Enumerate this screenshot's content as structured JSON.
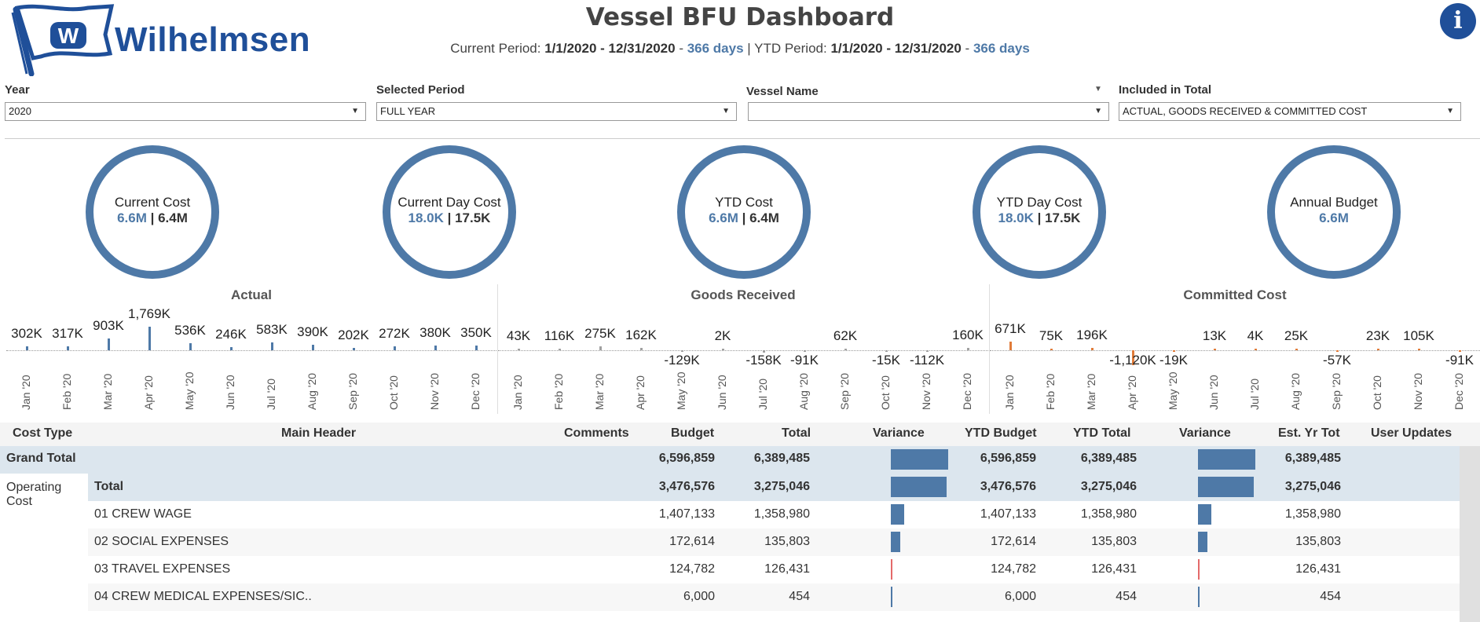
{
  "brand": {
    "name": "Wilhelmsen",
    "flag_letter": "W"
  },
  "header": {
    "title": "Vessel BFU Dashboard",
    "current_period_label": "Current Period:",
    "current_period_range": "1/1/2020 - 12/31/2020",
    "current_period_days": "366 days",
    "separator": "|",
    "ytd_period_label": "YTD Period:",
    "ytd_period_range": "1/1/2020 - 12/31/2020",
    "ytd_period_days": "366 days",
    "info_icon": "i"
  },
  "filters": [
    {
      "label": "Year",
      "value": "2020"
    },
    {
      "label": "Selected Period",
      "value": "FULL YEAR"
    },
    {
      "label": "Vessel Name",
      "value": ""
    },
    {
      "label": "Included in Total",
      "value": "ACTUAL, GOODS RECEIVED & COMMITTED COST"
    }
  ],
  "kpis": [
    {
      "label": "Current Cost",
      "highlight": "6.6M",
      "rest": " | 6.4M"
    },
    {
      "label": "Current Day Cost",
      "highlight": "18.0K",
      "rest": " | 17.5K"
    },
    {
      "label": "YTD Cost",
      "highlight": "6.6M",
      "rest": " | 6.4M"
    },
    {
      "label": "YTD Day Cost",
      "highlight": "18.0K",
      "rest": " | 17.5K"
    },
    {
      "label": "Annual Budget",
      "highlight": "6.6M",
      "rest": ""
    }
  ],
  "chart_data": [
    {
      "type": "bar",
      "title": "Actual",
      "color": "#4e79a7",
      "categories": [
        "Jan '20",
        "Feb '20",
        "Mar '20",
        "Apr '20",
        "May '20",
        "Jun '20",
        "Jul '20",
        "Aug '20",
        "Sep '20",
        "Oct '20",
        "Nov '20",
        "Dec '20"
      ],
      "values": [
        302000,
        317000,
        903000,
        1769000,
        536000,
        246000,
        583000,
        390000,
        202000,
        272000,
        380000,
        350000
      ],
      "labels": [
        "302K",
        "317K",
        "903K",
        "1,769K",
        "536K",
        "246K",
        "583K",
        "390K",
        "202K",
        "272K",
        "380K",
        "350K"
      ]
    },
    {
      "type": "bar",
      "title": "Goods Received",
      "color": "#a0a0a0",
      "categories": [
        "Jan '20",
        "Feb '20",
        "Mar '20",
        "Apr '20",
        "May '20",
        "Jun '20",
        "Jul '20",
        "Aug '20",
        "Sep '20",
        "Oct '20",
        "Nov '20",
        "Dec '20"
      ],
      "values": [
        43000,
        116000,
        275000,
        162000,
        -129000,
        2000,
        -158000,
        -91000,
        62000,
        -15000,
        -112000,
        160000
      ],
      "labels": [
        "43K",
        "116K",
        "275K",
        "162K",
        "-129K",
        "2K",
        "-158K",
        "-91K",
        "62K",
        "-15K",
        "-112K",
        "160K"
      ]
    },
    {
      "type": "bar",
      "title": "Committed Cost",
      "color": "#e07b39",
      "categories": [
        "Jan '20",
        "Feb '20",
        "Mar '20",
        "Apr '20",
        "May '20",
        "Jun '20",
        "Jul '20",
        "Aug '20",
        "Sep '20",
        "Oct '20",
        "Nov '20",
        "Dec '20"
      ],
      "values": [
        671000,
        75000,
        196000,
        -1120000,
        -19000,
        13000,
        4000,
        25000,
        -57000,
        23000,
        105000,
        -91000
      ],
      "labels": [
        "671K",
        "75K",
        "196K",
        "-1,120K",
        "-19K",
        "13K",
        "4K",
        "25K",
        "-57K",
        "23K",
        "105K",
        "-91K"
      ]
    }
  ],
  "table": {
    "columns": [
      "Cost Type",
      "Main Header",
      "Comments",
      "Budget",
      "Total",
      "Variance",
      "YTD Budget",
      "YTD Total",
      "Variance",
      "Est. Yr Tot",
      "User Updates"
    ],
    "grand_total": {
      "label": "Grand Total",
      "budget": "6,596,859",
      "total": "6,389,485",
      "ytd_budget": "6,596,859",
      "ytd_total": "6,389,485",
      "est": "6,389,485",
      "variance": 0.96
    },
    "group": {
      "label": "Operating Cost",
      "line1": "Operating",
      "line2": "Cost"
    },
    "rows": [
      {
        "main": "Total",
        "budget": "3,476,576",
        "total": "3,275,046",
        "ytd_budget": "3,476,576",
        "ytd_total": "3,275,046",
        "est": "3,275,046",
        "bold": true,
        "bar": 0.94,
        "bar_color": "#4e79a7"
      },
      {
        "main": "01 CREW WAGE",
        "budget": "1,407,133",
        "total": "1,358,980",
        "ytd_budget": "1,407,133",
        "ytd_total": "1,358,980",
        "est": "1,358,980",
        "bold": false,
        "bar": 0.22,
        "bar_color": "#4e79a7"
      },
      {
        "main": "02 SOCIAL EXPENSES",
        "budget": "172,614",
        "total": "135,803",
        "ytd_budget": "172,614",
        "ytd_total": "135,803",
        "est": "135,803",
        "bold": false,
        "bar": 0.16,
        "bar_color": "#4e79a7"
      },
      {
        "main": "03 TRAVEL EXPENSES",
        "budget": "124,782",
        "total": "126,431",
        "ytd_budget": "124,782",
        "ytd_total": "126,431",
        "est": "126,431",
        "bold": false,
        "bar": 0.02,
        "bar_color": "#e46a6a"
      },
      {
        "main": "04 CREW MEDICAL EXPENSES/SIC..",
        "budget": "6,000",
        "total": "454",
        "ytd_budget": "6,000",
        "ytd_total": "454",
        "est": "454",
        "bold": false,
        "bar": 0.02,
        "bar_color": "#4e79a7"
      }
    ]
  }
}
